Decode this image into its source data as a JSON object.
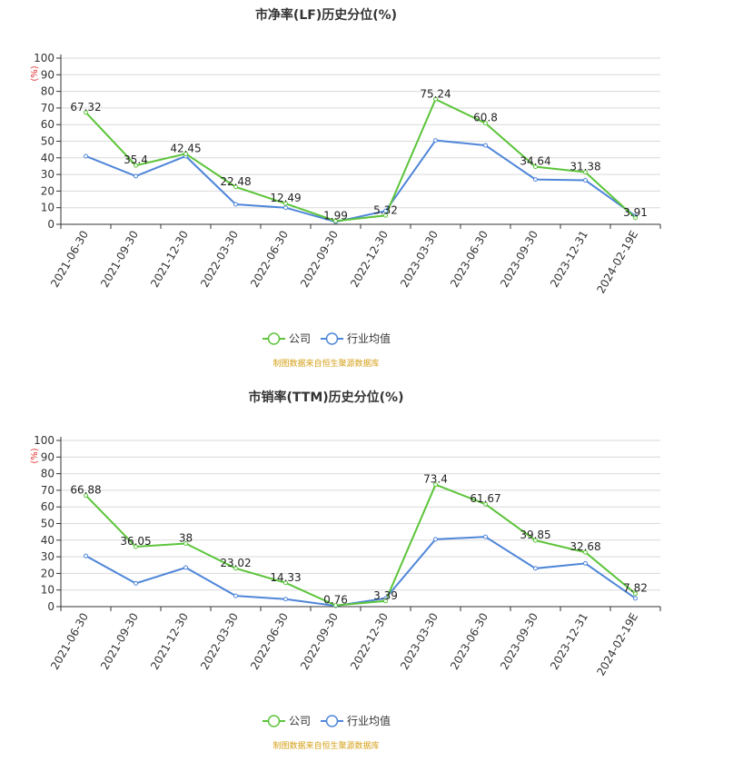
{
  "colors": {
    "company": "#5cc43a",
    "industry": "#4f86d9",
    "grid": "#d9d9d9",
    "axis": "#333333",
    "source": "#d4a017",
    "unit": "#e03030"
  },
  "chart_data": [
    {
      "type": "line",
      "title": "市净率(LF)历史分位(%)",
      "unit_label": "(%)",
      "ylim": [
        0,
        100
      ],
      "y_ticks": [
        0,
        10,
        20,
        30,
        40,
        50,
        60,
        70,
        80,
        90,
        100
      ],
      "grid": true,
      "legend_position": "bottom-center",
      "categories": [
        "2021-06-30",
        "2021-09-30",
        "2021-12-30",
        "2022-03-30",
        "2022-06-30",
        "2022-09-30",
        "2022-12-30",
        "2023-03-30",
        "2023-06-30",
        "2023-09-30",
        "2023-12-31",
        "2024-02-19E"
      ],
      "series": [
        {
          "name": "公司",
          "color": "#5cc43a",
          "values": [
            67.32,
            35.4,
            42.45,
            22.48,
            12.49,
            1.99,
            5.32,
            75.24,
            60.8,
            34.64,
            31.38,
            3.91
          ],
          "labels": [
            "67.32",
            "35.4",
            "42.45",
            "22.48",
            "12.49",
            "1.99",
            "5.32",
            "75.24",
            "60.8",
            "34.64",
            "31.38",
            "3.91"
          ]
        },
        {
          "name": "行业均值",
          "color": "#4f86d9",
          "values": [
            41,
            29,
            41,
            12,
            10,
            1.5,
            8,
            50.5,
            47.5,
            27,
            26.5,
            5
          ],
          "labels": []
        }
      ],
      "source": "制图数据来自恒生聚源数据库"
    },
    {
      "type": "line",
      "title": "市销率(TTM)历史分位(%)",
      "unit_label": "(%)",
      "ylim": [
        0,
        100
      ],
      "y_ticks": [
        0,
        10,
        20,
        30,
        40,
        50,
        60,
        70,
        80,
        90,
        100
      ],
      "grid": true,
      "legend_position": "bottom-center",
      "categories": [
        "2021-06-30",
        "2021-09-30",
        "2021-12-30",
        "2022-03-30",
        "2022-06-30",
        "2022-09-30",
        "2022-12-30",
        "2023-03-30",
        "2023-06-30",
        "2023-09-30",
        "2023-12-31",
        "2024-02-19E"
      ],
      "series": [
        {
          "name": "公司",
          "color": "#5cc43a",
          "values": [
            66.88,
            36.05,
            38,
            23.02,
            14.33,
            0.76,
            3.39,
            73.4,
            61.67,
            39.85,
            32.68,
            7.82
          ],
          "labels": [
            "66.88",
            "36.05",
            "38",
            "23.02",
            "14.33",
            "0.76",
            "3.39",
            "73.4",
            "61.67",
            "39.85",
            "32.68",
            "7.82"
          ]
        },
        {
          "name": "行业均值",
          "color": "#4f86d9",
          "values": [
            30.5,
            14,
            23.5,
            6.5,
            4.5,
            0.5,
            5,
            40.5,
            42,
            23,
            26,
            5
          ],
          "labels": []
        }
      ],
      "source": "制图数据来自恒生聚源数据库"
    }
  ]
}
